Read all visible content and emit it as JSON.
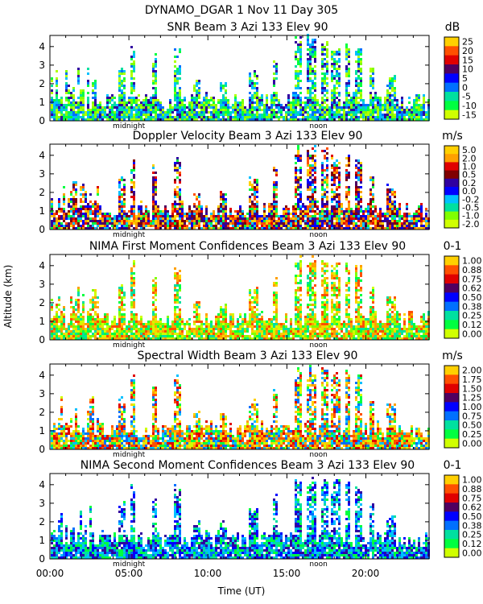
{
  "header": {
    "title": "DYNAMO_DGAR    1 Nov 11 Day 305"
  },
  "axes": {
    "ylabel": "Altitude (km)",
    "xlabel": "Time (UT)",
    "x_ticks": [
      "00:00",
      "05:00",
      "10:00",
      "15:00",
      "20:00"
    ],
    "y_ticks": [
      "0",
      "1",
      "2",
      "3",
      "4"
    ],
    "midnight_label": "midnight",
    "noon_label": "noon"
  },
  "chart_data": [
    {
      "type": "heatmap",
      "title": "SNR Beam 3 Azi 133 Elev 90",
      "unit": "dB",
      "xlim": [
        0,
        24
      ],
      "ylim": [
        0,
        4.6
      ],
      "colorbar_labels": [
        "25",
        "20",
        "15",
        "10",
        "5",
        "0",
        "-5",
        "-10",
        "-15"
      ]
    },
    {
      "type": "heatmap",
      "title": "Doppler Velocity Beam 3 Azi 133 Elev 90",
      "unit": "m/s",
      "xlim": [
        0,
        24
      ],
      "ylim": [
        0,
        4.6
      ],
      "colorbar_labels": [
        "5.0",
        "2.0",
        "1.0",
        "0.5",
        "0.2",
        "0.0",
        "-0.2",
        "-0.5",
        "-1.0",
        "-2.0"
      ]
    },
    {
      "type": "heatmap",
      "title": "NIMA First Moment Confidences Beam 3 Azi 133 Elev 90",
      "unit": "0-1",
      "xlim": [
        0,
        24
      ],
      "ylim": [
        0,
        4.6
      ],
      "colorbar_labels": [
        "1.00",
        "0.88",
        "0.75",
        "0.62",
        "0.50",
        "0.38",
        "0.25",
        "0.12",
        "0.00"
      ]
    },
    {
      "type": "heatmap",
      "title": "Spectral Width Beam 3 Azi 133 Elev 90",
      "unit": "m/s",
      "xlim": [
        0,
        24
      ],
      "ylim": [
        0,
        4.6
      ],
      "colorbar_labels": [
        "2.00",
        "1.75",
        "1.50",
        "1.25",
        "1.00",
        "0.75",
        "0.50",
        "0.25",
        "0.00"
      ]
    },
    {
      "type": "heatmap",
      "title": "NIMA Second Moment Confidences Beam 3 Azi 133 Elev 90",
      "unit": "0-1",
      "xlim": [
        0,
        24
      ],
      "ylim": [
        0,
        4.6
      ],
      "colorbar_labels": [
        "1.00",
        "0.88",
        "0.75",
        "0.62",
        "0.50",
        "0.38",
        "0.25",
        "0.12",
        "0.00"
      ]
    }
  ],
  "colorscale": [
    "#ffd000",
    "#ffa000",
    "#ff5000",
    "#e00000",
    "#800000",
    "#500060",
    "#3000a0",
    "#0000ff",
    "#0070ff",
    "#00c0ff",
    "#00e0a0",
    "#00ff40",
    "#80ff00",
    "#d0ff00"
  ]
}
